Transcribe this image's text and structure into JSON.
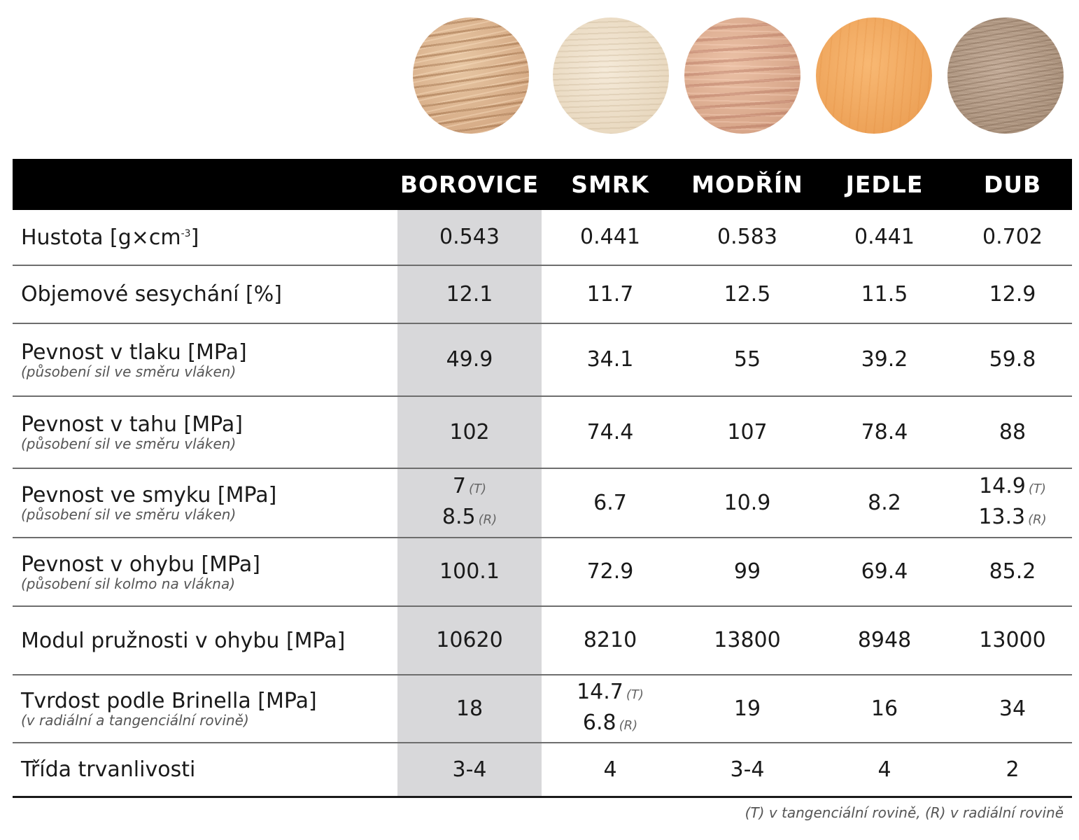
{
  "species": [
    {
      "key": "borovice",
      "name": "BOROVICE",
      "swatch": "pine-wood-swatch"
    },
    {
      "key": "smrk",
      "name": "SMRK",
      "swatch": "spruce-wood-swatch"
    },
    {
      "key": "modrin",
      "name": "MODŘÍN",
      "swatch": "larch-wood-swatch"
    },
    {
      "key": "jedle",
      "name": "JEDLE",
      "swatch": "fir-wood-swatch"
    },
    {
      "key": "dub",
      "name": "DUB",
      "swatch": "oak-wood-swatch"
    }
  ],
  "colors": {
    "header_bg": "#000000",
    "header_text": "#ffffff",
    "highlight_column": "#d8d8da"
  },
  "rows": [
    {
      "label": "Hustota [g×cm",
      "label_sup": "-3",
      "label_end": "]",
      "sub": "",
      "values": [
        [
          "0.543"
        ],
        [
          "0.441"
        ],
        [
          "0.583"
        ],
        [
          "0.441"
        ],
        [
          "0.702"
        ]
      ]
    },
    {
      "label": "Objemové sesychání [%]",
      "sub": "",
      "values": [
        [
          "12.1"
        ],
        [
          "11.7"
        ],
        [
          "12.5"
        ],
        [
          "11.5"
        ],
        [
          "12.9"
        ]
      ]
    },
    {
      "label": "Pevnost v tlaku [MPa]",
      "sub": "(působení sil ve směru vláken)",
      "values": [
        [
          "49.9"
        ],
        [
          "34.1"
        ],
        [
          "55"
        ],
        [
          "39.2"
        ],
        [
          "59.8"
        ]
      ]
    },
    {
      "label": "Pevnost v tahu [MPa]",
      "sub": "(působení sil ve směru vláken)",
      "values": [
        [
          "102"
        ],
        [
          "74.4"
        ],
        [
          "107"
        ],
        [
          "78.4"
        ],
        [
          "88"
        ]
      ]
    },
    {
      "label": "Pevnost ve smyku [MPa]",
      "sub": "(působení sil ve směru vláken)",
      "values": [
        [
          "7",
          "(T)",
          "8.5",
          "(R)"
        ],
        [
          "6.7"
        ],
        [
          "10.9"
        ],
        [
          "8.2"
        ],
        [
          "14.9",
          "(T)",
          "13.3",
          "(R)"
        ]
      ]
    },
    {
      "label": "Pevnost v ohybu [MPa]",
      "sub": "(působení sil kolmo na vlákna)",
      "values": [
        [
          "100.1"
        ],
        [
          "72.9"
        ],
        [
          "99"
        ],
        [
          "69.4"
        ],
        [
          "85.2"
        ]
      ]
    },
    {
      "label": "Modul pružnosti v ohybu [MPa]",
      "sub": "",
      "values": [
        [
          "10620"
        ],
        [
          "8210"
        ],
        [
          "13800"
        ],
        [
          "8948"
        ],
        [
          "13000"
        ]
      ]
    },
    {
      "label": "Tvrdost podle Brinella [MPa]",
      "sub": "(v radiální a tangenciální rovině)",
      "values": [
        [
          "18"
        ],
        [
          "14.7",
          "(T)",
          "6.8",
          "(R)"
        ],
        [
          "19"
        ],
        [
          "16"
        ],
        [
          "34"
        ]
      ]
    },
    {
      "label": "Třída trvanlivosti",
      "sub": "",
      "values": [
        [
          "3-4"
        ],
        [
          "4"
        ],
        [
          "3-4"
        ],
        [
          "4"
        ],
        [
          "2"
        ]
      ]
    }
  ],
  "footnote": "(T) v tangenciální rovině, (R) v radiální rovině"
}
